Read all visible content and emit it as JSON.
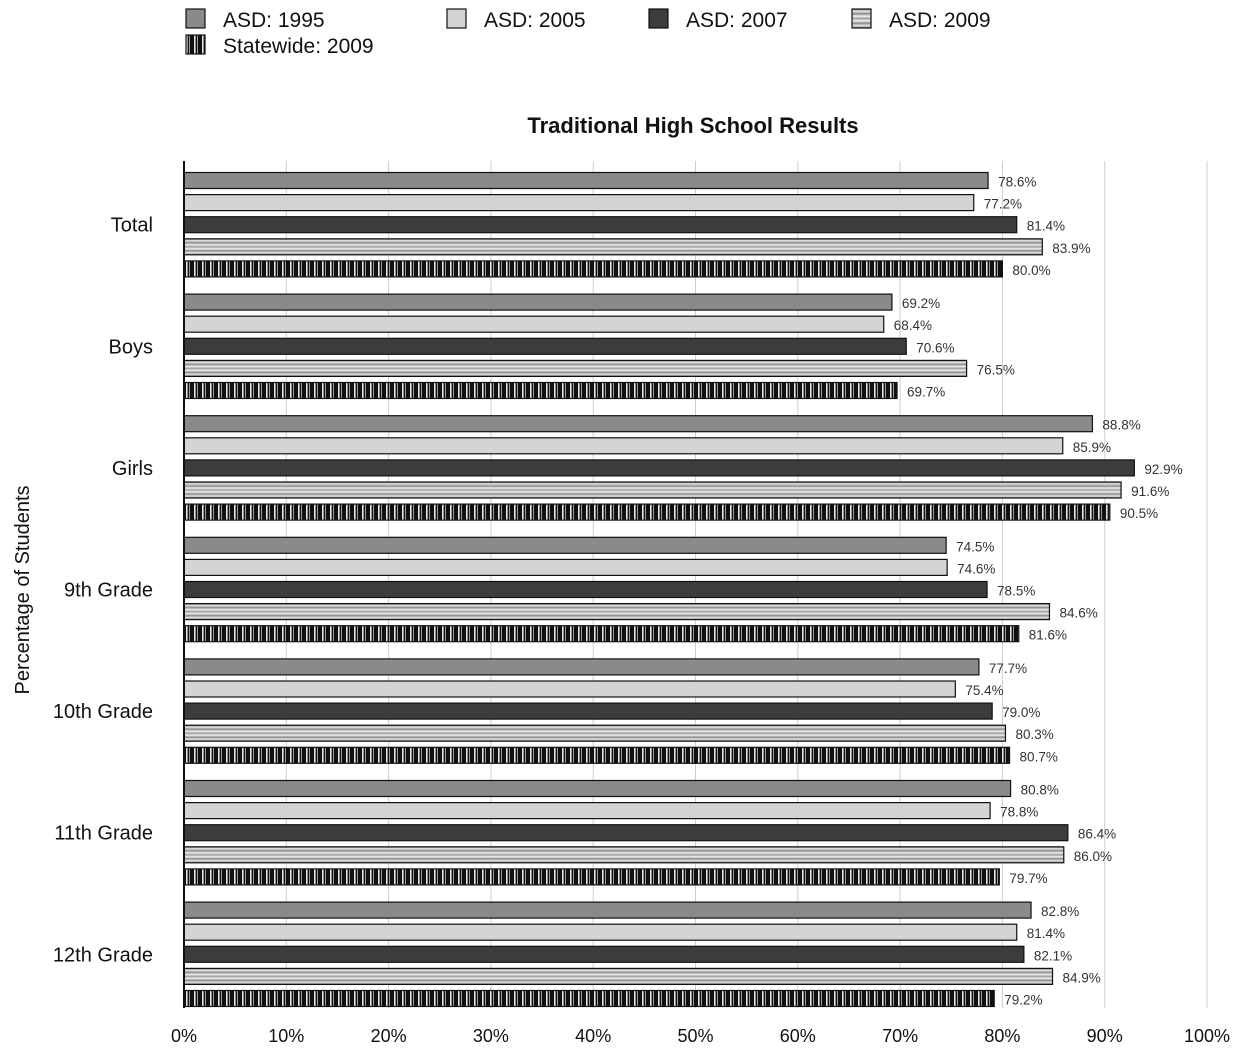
{
  "chart_data": {
    "type": "bar",
    "orientation": "horizontal",
    "title": "Traditional High School Results",
    "ylabel": "Percentage of Students",
    "xlabel": "",
    "xlim": [
      0,
      100
    ],
    "x_tick_labels": [
      "0%",
      "10%",
      "20%",
      "30%",
      "40%",
      "50%",
      "60%",
      "70%",
      "80%",
      "90%",
      "100%"
    ],
    "grid": true,
    "legend_position": "top",
    "categories": [
      "Total",
      "Boys",
      "Girls",
      "9th Grade",
      "10th Grade",
      "11th Grade",
      "12th Grade"
    ],
    "series": [
      {
        "name": "ASD: 1995",
        "style": "solid",
        "color": "#8a8a8a",
        "values": [
          78.6,
          69.2,
          88.8,
          74.5,
          77.7,
          80.8,
          82.8
        ],
        "labels": [
          "78.6%",
          "69.2%",
          "88.8%",
          "74.5%",
          "77.7%",
          "80.8%",
          "82.8%"
        ]
      },
      {
        "name": "ASD: 2005",
        "style": "solid",
        "color": "#d4d4d4",
        "values": [
          77.2,
          68.4,
          85.9,
          74.6,
          75.4,
          78.8,
          81.4
        ],
        "labels": [
          "77.2%",
          "68.4%",
          "85.9%",
          "74.6%",
          "75.4%",
          "78.8%",
          "81.4%"
        ]
      },
      {
        "name": "ASD: 2007",
        "style": "solid",
        "color": "#3c3c3c",
        "values": [
          81.4,
          70.6,
          92.9,
          78.5,
          79.0,
          86.4,
          82.1
        ],
        "labels": [
          "81.4%",
          "70.6%",
          "92.9%",
          "78.5%",
          "79.0%",
          "86.4%",
          "82.1%"
        ]
      },
      {
        "name": "ASD: 2009",
        "style": "horizontal-stripes",
        "color": "#9a9a9a",
        "values": [
          83.9,
          76.5,
          91.6,
          84.6,
          80.3,
          86.0,
          84.9
        ],
        "labels": [
          "83.9%",
          "76.5%",
          "91.6%",
          "84.6%",
          "80.3%",
          "86.0%",
          "84.9%"
        ]
      },
      {
        "name": "Statewide: 2009",
        "style": "vertical-stripes",
        "color": "#111111",
        "values": [
          80.0,
          69.7,
          90.5,
          81.6,
          80.7,
          79.7,
          79.2
        ],
        "labels": [
          "80.0%",
          "69.7%",
          "90.5%",
          "81.6%",
          "80.7%",
          "79.7%",
          "79.2%"
        ]
      }
    ]
  }
}
